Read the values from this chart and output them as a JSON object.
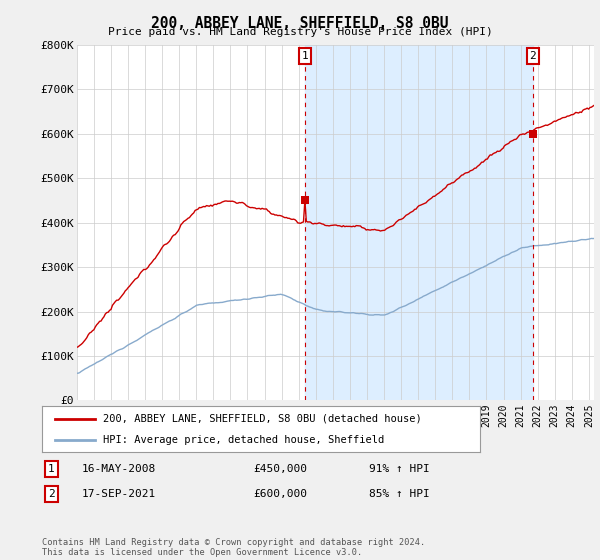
{
  "title": "200, ABBEY LANE, SHEFFIELD, S8 0BU",
  "subtitle": "Price paid vs. HM Land Registry's House Price Index (HPI)",
  "ylabel_ticks": [
    "£0",
    "£100K",
    "£200K",
    "£300K",
    "£400K",
    "£500K",
    "£600K",
    "£700K",
    "£800K"
  ],
  "ytick_values": [
    0,
    100000,
    200000,
    300000,
    400000,
    500000,
    600000,
    700000,
    800000
  ],
  "ylim": [
    0,
    800000
  ],
  "red_line_color": "#cc0000",
  "blue_line_color": "#88aacc",
  "shade_color": "#ddeeff",
  "annotation_box_color": "#cc0000",
  "legend_label_red": "200, ABBEY LANE, SHEFFIELD, S8 0BU (detached house)",
  "legend_label_blue": "HPI: Average price, detached house, Sheffield",
  "footnote": "Contains HM Land Registry data © Crown copyright and database right 2024.\nThis data is licensed under the Open Government Licence v3.0.",
  "annotation1_date": "16-MAY-2008",
  "annotation1_price": "£450,000",
  "annotation1_hpi": "91% ↑ HPI",
  "annotation2_date": "17-SEP-2021",
  "annotation2_price": "£600,000",
  "annotation2_hpi": "85% ↑ HPI",
  "background_color": "#f0f0f0",
  "plot_bg_color": "#ffffff",
  "sale1_year": 2008.375,
  "sale1_price": 450000,
  "sale2_year": 2021.708,
  "sale2_price": 600000,
  "xlim_start": 1995,
  "xlim_end": 2025.3
}
